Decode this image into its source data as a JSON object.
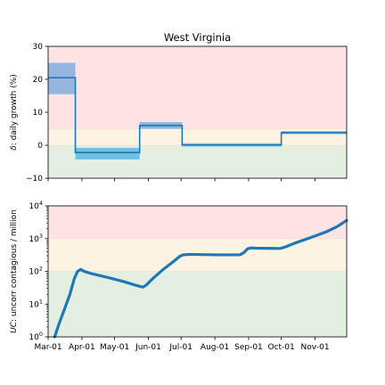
{
  "chart_data": [
    {
      "type": "line",
      "title": "West Virginia",
      "ylabel": "δ: daily growth (%)",
      "ylim": [
        -10,
        30
      ],
      "yticks": [
        -10,
        0,
        10,
        20,
        30
      ],
      "ytick_labels": [
        "−10",
        "0",
        "10",
        "20",
        "30"
      ],
      "xlim_days": [
        0,
        274
      ],
      "bands": [
        {
          "from": -10,
          "to": 0,
          "color": "#e3efe1"
        },
        {
          "from": 0,
          "to": 5,
          "color": "#fdf3e3"
        },
        {
          "from": 5,
          "to": 30,
          "color": "#fde3e3"
        }
      ],
      "series": [
        {
          "type": "step",
          "color": "#1f77b4",
          "segments": [
            {
              "x0": 0,
              "x1": 25,
              "y": 20.5,
              "lo": 15.5,
              "hi": 25
            },
            {
              "x0": 25,
              "x1": 84,
              "y": -2.2,
              "lo": -4.3,
              "hi": -0.8
            },
            {
              "x0": 84,
              "x1": 123,
              "y": 6.0,
              "lo": 5.0,
              "hi": 7.0
            },
            {
              "x0": 123,
              "x1": 214,
              "y": 0.1,
              "lo": -0.4,
              "hi": 0.6
            },
            {
              "x0": 214,
              "x1": 274,
              "y": 3.8,
              "lo": 3.4,
              "hi": 4.3
            }
          ]
        }
      ]
    },
    {
      "type": "line",
      "ylabel": "UC: uncorr contagious / million",
      "yscale": "log",
      "ylim": [
        1,
        10000
      ],
      "yticks": [
        1,
        10,
        100,
        1000,
        10000
      ],
      "ytick_labels": [
        {
          "base": "10",
          "exp": "0"
        },
        {
          "base": "10",
          "exp": "1"
        },
        {
          "base": "10",
          "exp": "2"
        },
        {
          "base": "10",
          "exp": "3"
        },
        {
          "base": "10",
          "exp": "4"
        }
      ],
      "xtick_days": [
        0,
        31,
        61,
        92,
        122,
        153,
        184,
        214,
        245
      ],
      "xtick_labels": [
        "Mar-01",
        "Apr-01",
        "May-01",
        "Jun-01",
        "Jul-01",
        "Aug-01",
        "Sep-01",
        "Oct-01",
        "Nov-01"
      ],
      "xtick_label_days": [
        0,
        31,
        61,
        92,
        122,
        153,
        184,
        214,
        245
      ],
      "bands": [
        {
          "from": 1,
          "to": 100,
          "color": "#e3efe1"
        },
        {
          "from": 100,
          "to": 1000,
          "color": "#fdf3e3"
        },
        {
          "from": 1000,
          "to": 10000,
          "color": "#fde3e3"
        }
      ],
      "series": [
        {
          "color": "#1f77b4",
          "points": [
            [
              6,
              1.0
            ],
            [
              10,
              2.5
            ],
            [
              15,
              7
            ],
            [
              20,
              20
            ],
            [
              24,
              60
            ],
            [
              27,
              100
            ],
            [
              30,
              115
            ],
            [
              33,
              100
            ],
            [
              40,
              85
            ],
            [
              55,
              65
            ],
            [
              70,
              48
            ],
            [
              80,
              38
            ],
            [
              87,
              33
            ],
            [
              90,
              38
            ],
            [
              96,
              60
            ],
            [
              105,
              110
            ],
            [
              115,
              200
            ],
            [
              121,
              290
            ],
            [
              124,
              320
            ],
            [
              130,
              330
            ],
            [
              155,
              320
            ],
            [
              176,
              320
            ],
            [
              180,
              380
            ],
            [
              183,
              490
            ],
            [
              186,
              520
            ],
            [
              192,
              510
            ],
            [
              200,
              505
            ],
            [
              213,
              500
            ],
            [
              218,
              560
            ],
            [
              225,
              700
            ],
            [
              240,
              1050
            ],
            [
              255,
              1600
            ],
            [
              265,
              2300
            ],
            [
              274,
              3600
            ]
          ]
        }
      ]
    }
  ]
}
